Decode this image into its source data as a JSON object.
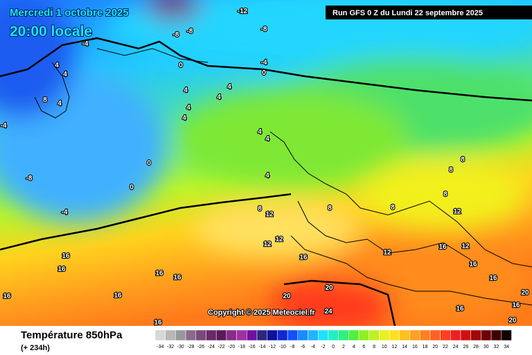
{
  "header": {
    "valid_date": "Mercredi 1 octobre 2025",
    "valid_time": "20:00 locale",
    "run": "Run GFS 0 Z du Lundi 22 septembre 2025"
  },
  "copyright": "Copyright © 2025 Meteociel.fr",
  "footer": {
    "parameter": "Température 850hPa",
    "lead_time": "(+ 234h)"
  },
  "contour_labels": [
    "-12",
    "-8",
    "-8",
    "-8",
    "-4",
    "0",
    "-4",
    "0",
    "4",
    "4",
    "4",
    "8",
    "4",
    "4",
    "4",
    "4",
    "4",
    "-4",
    "0",
    "-8",
    "0",
    "-4",
    "4",
    "4",
    "4",
    "8",
    "8",
    "8",
    "8",
    "8",
    "8",
    "12",
    "12",
    "12",
    "12",
    "12",
    "16",
    "16",
    "16",
    "16",
    "16",
    "16",
    "16",
    "16",
    "16",
    "16",
    "16",
    "16",
    "12",
    "20",
    "20",
    "24",
    "20",
    "20",
    "16"
  ],
  "scale": {
    "labels": [
      "-34",
      "-32",
      "-30",
      "-28",
      "-26",
      "-24",
      "-22",
      "-20",
      "-18",
      "-16",
      "-14",
      "-12",
      "-10",
      "-8",
      "-6",
      "-4",
      "-2",
      "0",
      "2",
      "4",
      "6",
      "8",
      "10",
      "12",
      "14",
      "16",
      "18",
      "20",
      "22",
      "24",
      "26",
      "28",
      "30",
      "32",
      "34"
    ],
    "colors": [
      "#d8d8d8",
      "#b8b8b8",
      "#989898",
      "#8a6a8a",
      "#7a4a7a",
      "#6a2a6a",
      "#5a1a5a",
      "#8a2a8a",
      "#a030a0",
      "#7010a0",
      "#2a2a7a",
      "#1010a0",
      "#1028d0",
      "#1050ff",
      "#1a8aff",
      "#20b4ff",
      "#20e0ff",
      "#20f0c0",
      "#30f080",
      "#50f040",
      "#90f020",
      "#c0f020",
      "#e8f020",
      "#ffe020",
      "#ffc020",
      "#ffa020",
      "#ff8020",
      "#ff6020",
      "#ff4020",
      "#f02020",
      "#d01010",
      "#a00808",
      "#700000",
      "#400000",
      "#100000"
    ]
  }
}
